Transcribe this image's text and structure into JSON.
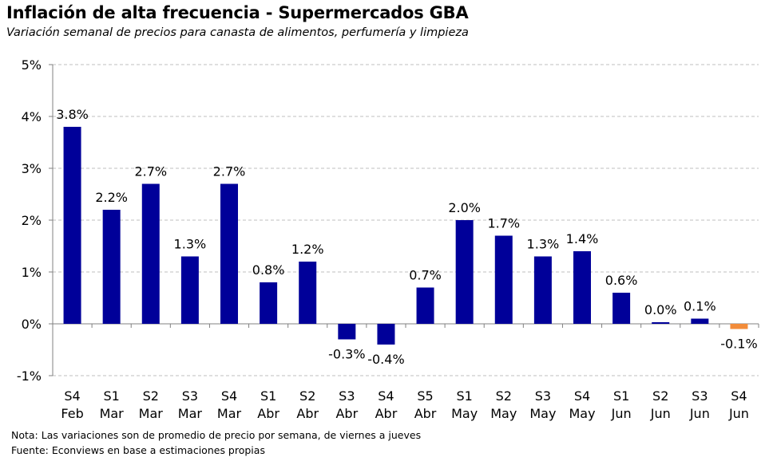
{
  "header": {
    "title": "Inflación de alta frecuencia - Supermercados GBA",
    "subtitle": "Variación semanal de precios para canasta de alimentos, perfumería y limpieza"
  },
  "footer": {
    "note": "Nota: Las variaciones son de promedio de precio por semana, de viernes a jueves",
    "source": "Fuente: Econviews en base a estimaciones propias"
  },
  "chart_data": {
    "type": "bar",
    "title": "Inflación de alta frecuencia - Supermercados GBA",
    "subtitle": "Variación semanal de precios para canasta de alimentos, perfumería y limpieza",
    "xlabel": "",
    "ylabel": "",
    "categories": [
      [
        "S4",
        "Feb"
      ],
      [
        "S1",
        "Mar"
      ],
      [
        "S2",
        "Mar"
      ],
      [
        "S3",
        "Mar"
      ],
      [
        "S4",
        "Mar"
      ],
      [
        "S1",
        "Abr"
      ],
      [
        "S2",
        "Abr"
      ],
      [
        "S3",
        "Abr"
      ],
      [
        "S4",
        "Abr"
      ],
      [
        "S5",
        "Abr"
      ],
      [
        "S1",
        "May"
      ],
      [
        "S2",
        "May"
      ],
      [
        "S3",
        "May"
      ],
      [
        "S4",
        "May"
      ],
      [
        "S1",
        "Jun"
      ],
      [
        "S2",
        "Jun"
      ],
      [
        "S3",
        "Jun"
      ],
      [
        "S4",
        "Jun"
      ]
    ],
    "values": [
      3.8,
      2.2,
      2.7,
      1.3,
      2.7,
      0.8,
      1.2,
      -0.3,
      -0.4,
      0.7,
      2.0,
      1.7,
      1.3,
      1.4,
      0.6,
      0.0,
      0.1,
      -0.1
    ],
    "value_labels": [
      "3.8%",
      "2.2%",
      "2.7%",
      "1.3%",
      "2.7%",
      "0.8%",
      "1.2%",
      "-0.3%",
      "-0.4%",
      "0.7%",
      "2.0%",
      "1.7%",
      "1.3%",
      "1.4%",
      "0.6%",
      "0.0%",
      "0.1%",
      "-0.1%"
    ],
    "ylim": [
      -1,
      5
    ],
    "yticks": [
      -1,
      0,
      1,
      2,
      3,
      4,
      5
    ],
    "ytick_labels": [
      "-1%",
      "0%",
      "1%",
      "2%",
      "3%",
      "4%",
      "5%"
    ],
    "grid": true,
    "colors": {
      "bar": "#000099",
      "highlight": "#F28C3A",
      "grid": "#bfbfbf",
      "axis": "#808080"
    },
    "highlight_index": 17
  }
}
